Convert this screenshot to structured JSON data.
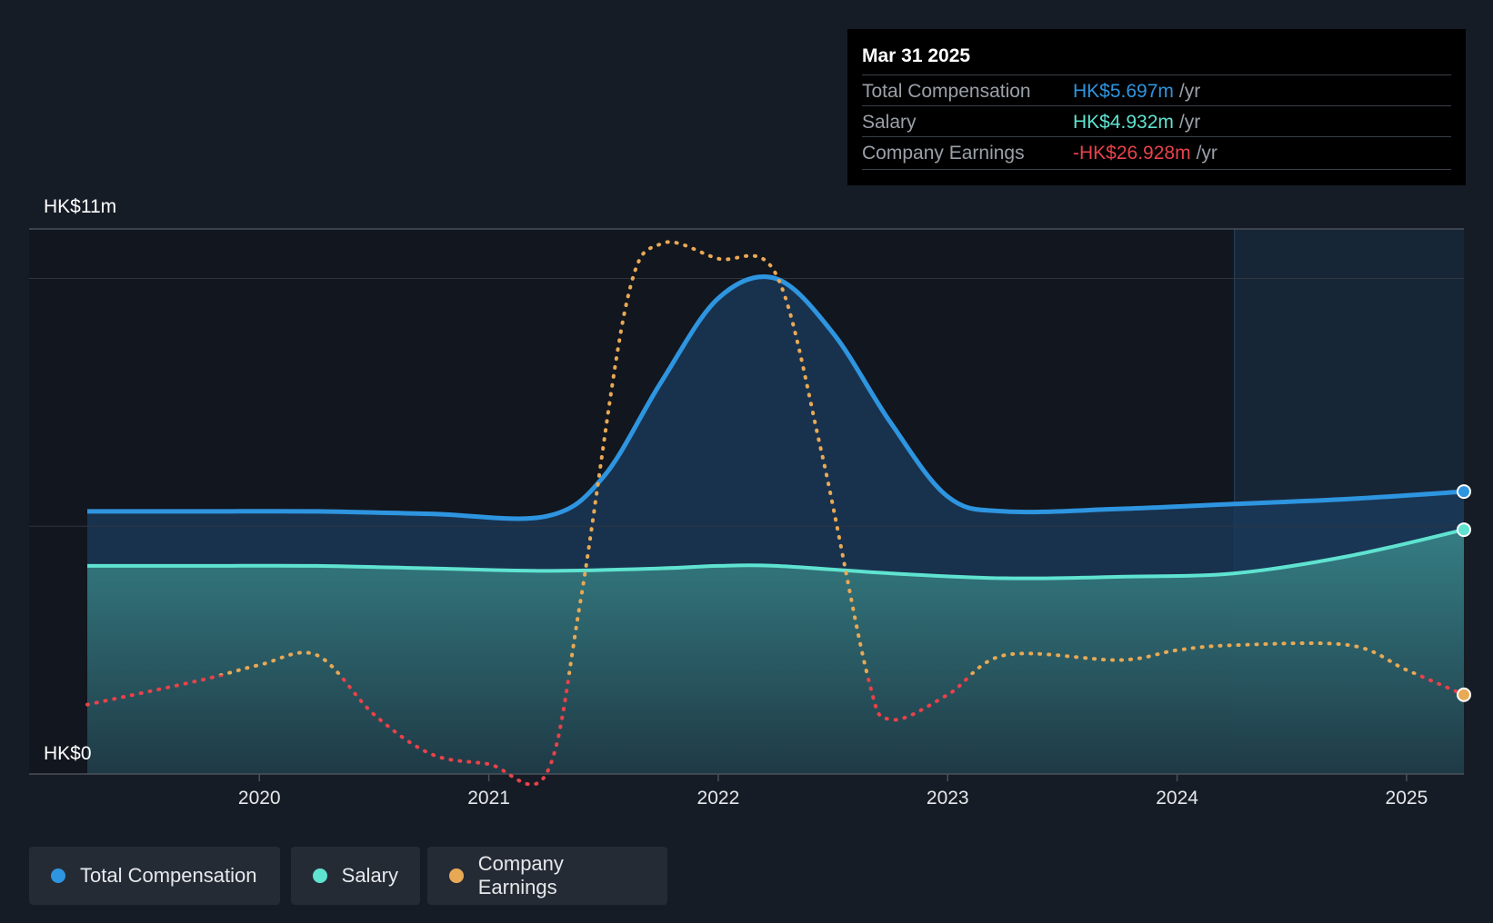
{
  "colors": {
    "background": "#161c25",
    "total_compensation": "#2e95e0",
    "salary": "#5fe3d0",
    "earnings_positive": "#e8a955",
    "earnings_negative": "#e8424a"
  },
  "tooltip": {
    "date": "Mar 31 2025",
    "rows": [
      {
        "label": "Total Compensation",
        "value": "HK$5.697m",
        "unit": "/yr"
      },
      {
        "label": "Salary",
        "value": "HK$4.932m",
        "unit": "/yr"
      },
      {
        "label": "Company Earnings",
        "value": "-HK$26.928m",
        "unit": "/yr"
      }
    ]
  },
  "legend": [
    {
      "label": "Total Compensation",
      "icon": "dot-icon"
    },
    {
      "label": "Salary",
      "icon": "dot-icon"
    },
    {
      "label": "Company Earnings",
      "icon": "dot-icon"
    }
  ],
  "chart_data": {
    "type": "area",
    "y_axis_labels": [
      "HK$11m",
      "HK$0"
    ],
    "ylim": [
      0,
      11
    ],
    "x_ticks": [
      "2020",
      "2021",
      "2022",
      "2023",
      "2024",
      "2025"
    ],
    "xlim": [
      2019.25,
      2025.25
    ],
    "forecast_start": 2024.25,
    "series": [
      {
        "name": "Total Compensation",
        "x": [
          2019.25,
          2019.75,
          2020.25,
          2020.75,
          2021.25,
          2021.5,
          2021.75,
          2022.0,
          2022.25,
          2022.5,
          2022.75,
          2023.0,
          2023.25,
          2023.75,
          2024.25,
          2024.75,
          2025.25
        ],
        "values": [
          5.3,
          5.3,
          5.3,
          5.25,
          5.2,
          6.0,
          7.9,
          9.6,
          10.0,
          8.9,
          7.1,
          5.6,
          5.3,
          5.35,
          5.45,
          5.55,
          5.7
        ]
      },
      {
        "name": "Salary",
        "x": [
          2019.25,
          2019.75,
          2020.25,
          2020.75,
          2021.25,
          2021.75,
          2022.0,
          2022.25,
          2022.75,
          2023.25,
          2023.75,
          2024.25,
          2024.75,
          2025.25
        ],
        "values": [
          4.2,
          4.2,
          4.2,
          4.15,
          4.1,
          4.15,
          4.2,
          4.2,
          4.05,
          3.95,
          3.98,
          4.05,
          4.4,
          4.93
        ]
      },
      {
        "name": "Company Earnings",
        "x": [
          2019.25,
          2019.75,
          2020.0,
          2020.25,
          2020.5,
          2020.75,
          2021.0,
          2021.25,
          2021.4,
          2021.6,
          2021.75,
          2022.0,
          2022.25,
          2022.45,
          2022.65,
          2022.75,
          2023.0,
          2023.25,
          2023.75,
          2024.0,
          2024.25,
          2024.75,
          2025.0,
          2025.25
        ],
        "values": [
          1.4,
          1.9,
          2.2,
          2.4,
          1.2,
          0.4,
          0.2,
          0.0,
          3.5,
          9.5,
          10.7,
          10.4,
          10.1,
          6.5,
          2.0,
          1.1,
          1.6,
          2.4,
          2.3,
          2.5,
          2.6,
          2.6,
          2.1,
          1.6
        ],
        "note": "negative earnings segments drawn in red"
      }
    ]
  }
}
